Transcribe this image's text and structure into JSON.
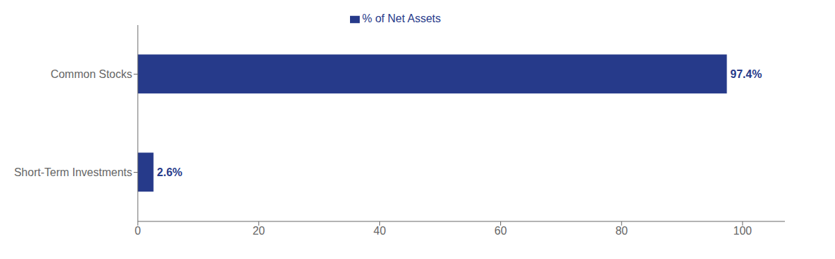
{
  "chart_data": {
    "type": "bar",
    "orientation": "horizontal",
    "categories": [
      "Common Stocks",
      "Short-Term Investments"
    ],
    "series": [
      {
        "name": "% of Net Assets",
        "color": "#263a8a",
        "values": [
          97.4,
          2.6
        ],
        "value_labels": [
          "97.4%",
          "2.6%"
        ]
      }
    ],
    "data_labels": true,
    "xlim": [
      0,
      107
    ],
    "xticks": [
      0,
      20,
      40,
      60,
      80,
      100
    ],
    "grid": false,
    "legend": "top"
  }
}
